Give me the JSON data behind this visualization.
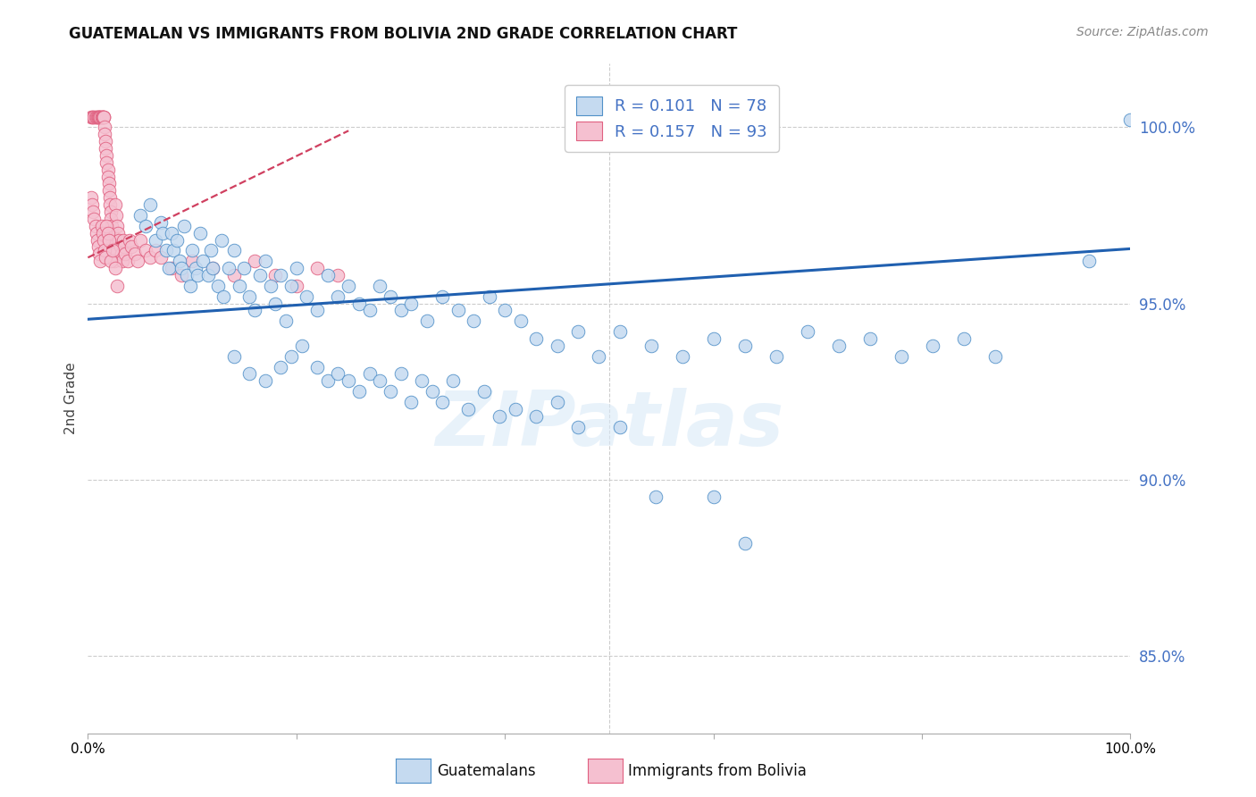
{
  "title": "GUATEMALAN VS IMMIGRANTS FROM BOLIVIA 2ND GRADE CORRELATION CHART",
  "source": "Source: ZipAtlas.com",
  "ylabel": "2nd Grade",
  "xlim": [
    0,
    1.0
  ],
  "ylim": [
    0.828,
    1.018
  ],
  "yticks": [
    0.85,
    0.9,
    0.95,
    1.0
  ],
  "ytick_labels": [
    "85.0%",
    "90.0%",
    "95.0%",
    "100.0%"
  ],
  "blue_R": 0.101,
  "blue_N": 78,
  "pink_R": 0.157,
  "pink_N": 93,
  "blue_face": "#c5daf0",
  "blue_edge": "#5090c8",
  "pink_face": "#f5c0d0",
  "pink_edge": "#e06080",
  "blue_line_color": "#2060b0",
  "pink_line_color": "#d04060",
  "tick_color_y": "#4472c4",
  "legend_text_color": "#4472c4",
  "grid_color": "#cccccc",
  "blue_trend_x0": 0.0,
  "blue_trend_x1": 1.0,
  "blue_trend_y0": 0.9455,
  "blue_trend_y1": 0.9655,
  "pink_trend_x0": 0.0,
  "pink_trend_x1": 0.25,
  "pink_trend_y0": 0.963,
  "pink_trend_y1": 0.999,
  "blue_x": [
    0.05,
    0.055,
    0.06,
    0.065,
    0.07,
    0.072,
    0.075,
    0.078,
    0.08,
    0.082,
    0.085,
    0.088,
    0.09,
    0.092,
    0.095,
    0.098,
    0.1,
    0.103,
    0.105,
    0.108,
    0.11,
    0.115,
    0.118,
    0.12,
    0.125,
    0.128,
    0.13,
    0.135,
    0.14,
    0.145,
    0.15,
    0.155,
    0.16,
    0.165,
    0.17,
    0.175,
    0.18,
    0.185,
    0.19,
    0.195,
    0.2,
    0.21,
    0.22,
    0.23,
    0.24,
    0.25,
    0.26,
    0.27,
    0.28,
    0.29,
    0.3,
    0.31,
    0.325,
    0.34,
    0.355,
    0.37,
    0.385,
    0.4,
    0.415,
    0.43,
    0.45,
    0.47,
    0.49,
    0.51,
    0.54,
    0.57,
    0.6,
    0.63,
    0.66,
    0.69,
    0.72,
    0.75,
    0.78,
    0.81,
    0.84,
    0.87,
    0.96,
    1.0
  ],
  "blue_y": [
    0.975,
    0.972,
    0.978,
    0.968,
    0.973,
    0.97,
    0.965,
    0.96,
    0.97,
    0.965,
    0.968,
    0.962,
    0.96,
    0.972,
    0.958,
    0.955,
    0.965,
    0.96,
    0.958,
    0.97,
    0.962,
    0.958,
    0.965,
    0.96,
    0.955,
    0.968,
    0.952,
    0.96,
    0.965,
    0.955,
    0.96,
    0.952,
    0.948,
    0.958,
    0.962,
    0.955,
    0.95,
    0.958,
    0.945,
    0.955,
    0.96,
    0.952,
    0.948,
    0.958,
    0.952,
    0.955,
    0.95,
    0.948,
    0.955,
    0.952,
    0.948,
    0.95,
    0.945,
    0.952,
    0.948,
    0.945,
    0.952,
    0.948,
    0.945,
    0.94,
    0.938,
    0.942,
    0.935,
    0.942,
    0.938,
    0.935,
    0.94,
    0.938,
    0.935,
    0.942,
    0.938,
    0.94,
    0.935,
    0.938,
    0.94,
    0.935,
    0.962,
    1.002
  ],
  "blue_x_lower": [
    0.14,
    0.155,
    0.17,
    0.185,
    0.195,
    0.205,
    0.22,
    0.23,
    0.24,
    0.25,
    0.26,
    0.27,
    0.28,
    0.29,
    0.3,
    0.31,
    0.32,
    0.33,
    0.34,
    0.35,
    0.365,
    0.38,
    0.395,
    0.41,
    0.43,
    0.45,
    0.47,
    0.51,
    0.545,
    0.6,
    0.63
  ],
  "blue_y_lower": [
    0.935,
    0.93,
    0.928,
    0.932,
    0.935,
    0.938,
    0.932,
    0.928,
    0.93,
    0.928,
    0.925,
    0.93,
    0.928,
    0.925,
    0.93,
    0.922,
    0.928,
    0.925,
    0.922,
    0.928,
    0.92,
    0.925,
    0.918,
    0.92,
    0.918,
    0.922,
    0.915,
    0.915,
    0.895,
    0.895,
    0.882
  ],
  "pink_x": [
    0.003,
    0.004,
    0.005,
    0.006,
    0.007,
    0.008,
    0.009,
    0.01,
    0.01,
    0.011,
    0.011,
    0.012,
    0.012,
    0.013,
    0.013,
    0.014,
    0.014,
    0.015,
    0.015,
    0.015,
    0.016,
    0.016,
    0.017,
    0.017,
    0.018,
    0.018,
    0.019,
    0.019,
    0.02,
    0.02,
    0.021,
    0.021,
    0.022,
    0.022,
    0.023,
    0.023,
    0.024,
    0.024,
    0.025,
    0.025,
    0.026,
    0.027,
    0.028,
    0.029,
    0.03,
    0.031,
    0.032,
    0.033,
    0.034,
    0.035,
    0.036,
    0.038,
    0.04,
    0.042,
    0.045,
    0.048,
    0.05,
    0.055,
    0.06,
    0.065,
    0.07,
    0.08,
    0.09,
    0.1,
    0.12,
    0.14,
    0.16,
    0.18,
    0.2,
    0.22,
    0.24,
    0.003,
    0.004,
    0.005,
    0.006,
    0.007,
    0.008,
    0.009,
    0.01,
    0.011,
    0.012,
    0.013,
    0.014,
    0.015,
    0.016,
    0.017,
    0.018,
    0.019,
    0.02,
    0.022,
    0.024,
    0.026,
    0.028
  ],
  "pink_y": [
    1.003,
    1.003,
    1.003,
    1.003,
    1.003,
    1.003,
    1.003,
    1.003,
    1.003,
    1.003,
    1.003,
    1.003,
    1.003,
    1.003,
    1.003,
    1.003,
    1.003,
    1.003,
    1.003,
    1.003,
    1.0,
    0.998,
    0.996,
    0.994,
    0.992,
    0.99,
    0.988,
    0.986,
    0.984,
    0.982,
    0.98,
    0.978,
    0.976,
    0.974,
    0.972,
    0.97,
    0.968,
    0.966,
    0.964,
    0.962,
    0.978,
    0.975,
    0.972,
    0.97,
    0.968,
    0.966,
    0.964,
    0.962,
    0.968,
    0.966,
    0.964,
    0.962,
    0.968,
    0.966,
    0.964,
    0.962,
    0.968,
    0.965,
    0.963,
    0.965,
    0.963,
    0.96,
    0.958,
    0.962,
    0.96,
    0.958,
    0.962,
    0.958,
    0.955,
    0.96,
    0.958,
    0.98,
    0.978,
    0.976,
    0.974,
    0.972,
    0.97,
    0.968,
    0.966,
    0.964,
    0.962,
    0.972,
    0.97,
    0.968,
    0.965,
    0.963,
    0.972,
    0.97,
    0.968,
    0.962,
    0.965,
    0.96,
    0.955
  ]
}
